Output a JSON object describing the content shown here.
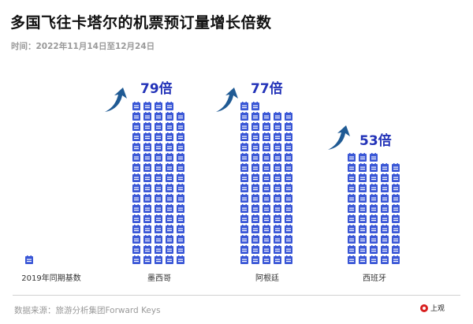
{
  "header": {
    "title": "多国飞往卡塔尔的机票预订量增长倍数",
    "subtitle": "时间：2022年11月14日至12月24日"
  },
  "legend": {
    "baseline_label": "2019年同期基数",
    "baseline_count": 1
  },
  "columns": [
    {
      "label": "墨西哥",
      "count": 79,
      "multiplier": "79倍"
    },
    {
      "label": "阿根廷",
      "count": 77,
      "multiplier": "77倍"
    },
    {
      "label": "西班牙",
      "count": 53,
      "multiplier": "53倍"
    }
  ],
  "footer": {
    "source": "数据来源：旅游分析集团Forward Keys",
    "logo_text": "上观"
  },
  "colors": {
    "icon": "#3a57d6",
    "multiplier": "#2333b8",
    "arrow": "#1f5a94"
  },
  "chart_data": {
    "type": "bar",
    "title": "多国飞往卡塔尔的机票预订量增长倍数",
    "subtitle": "时间：2022年11月14日至12月24日",
    "categories": [
      "2019年同期基数",
      "墨西哥",
      "阿根廷",
      "西班牙"
    ],
    "values": [
      1,
      79,
      77,
      53
    ],
    "value_labels": [
      "",
      "79倍",
      "77倍",
      "53倍"
    ],
    "unit": "倍 (multiple of 2019 same-period bookings)",
    "representation": "pictogram, each ticket icon = 1× 2019 baseline, 5 icons per row",
    "xlabel": "",
    "ylabel": "",
    "grid": false,
    "legend_position": "none",
    "source": "数据来源：旅游分析集团Forward Keys"
  }
}
